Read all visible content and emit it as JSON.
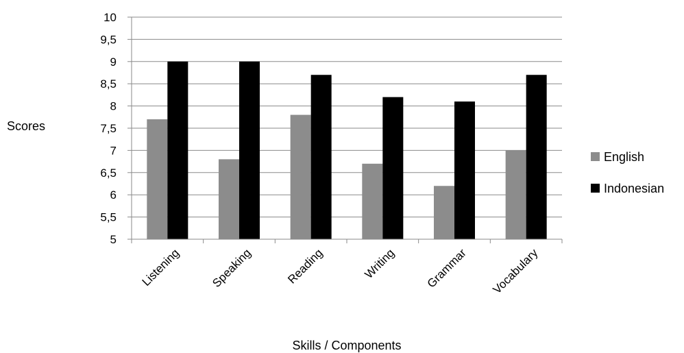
{
  "chart_data": {
    "type": "bar",
    "ylabel": "Scores",
    "xlabel": "Skills / Components",
    "ylim": [
      5,
      10
    ],
    "yticks": [
      "5",
      "5,5",
      "6",
      "6,5",
      "7",
      "7,5",
      "8",
      "8,5",
      "9",
      "9,5",
      "10"
    ],
    "grid": true,
    "legend_position": "right",
    "categories": [
      "Listening",
      "Speaking",
      "Reading",
      "Writing",
      "Grammar",
      "Vocabulary"
    ],
    "series": [
      {
        "name": "English",
        "color": "#8c8c8c",
        "values": [
          7.7,
          6.8,
          7.8,
          6.7,
          6.2,
          7.0
        ]
      },
      {
        "name": "Indonesian",
        "color": "#000000",
        "values": [
          9.0,
          9.0,
          8.7,
          8.2,
          8.1,
          8.7
        ]
      }
    ]
  }
}
